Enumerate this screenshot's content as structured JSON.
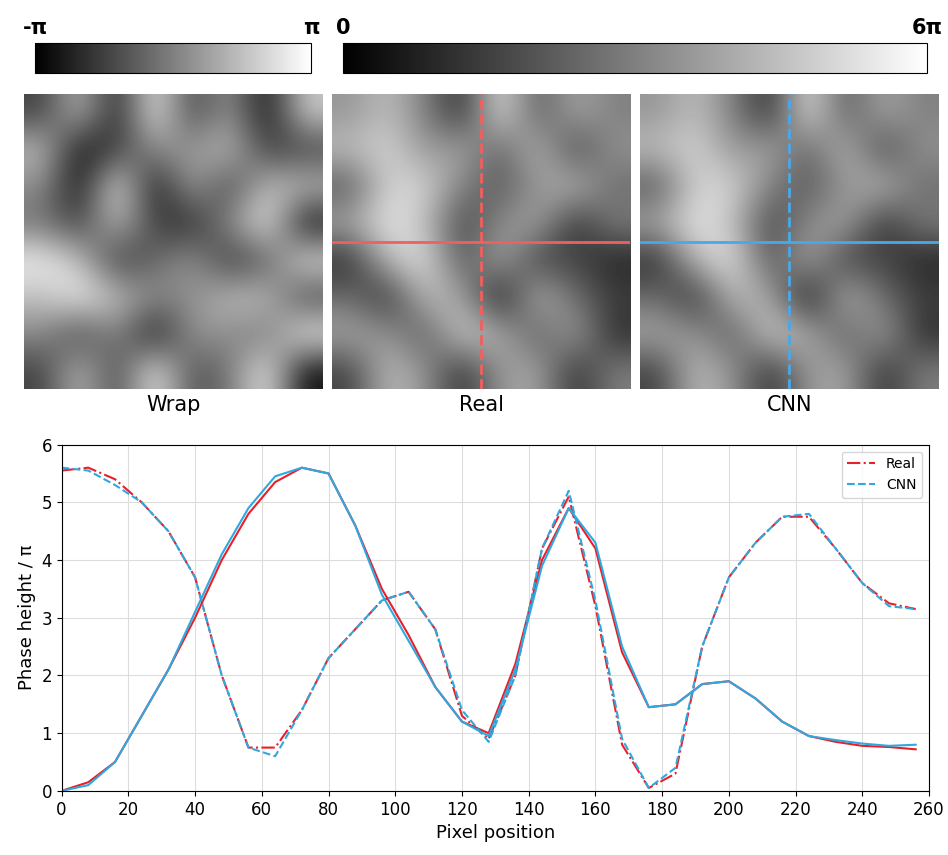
{
  "chart_data": [
    {
      "type": "heatmap",
      "title": "Wrap",
      "pixels": 256,
      "color_range": [
        -1,
        1
      ],
      "colorbar_ticks": [
        {
          "value": -1,
          "label": "-π"
        },
        {
          "value": 1,
          "label": "π"
        }
      ],
      "tick_labels": false,
      "cells": [
        [
          -0.5,
          0.5,
          -0.8,
          0.9,
          -0.5,
          0.2,
          -0.9,
          0.6
        ],
        [
          0.5,
          -0.9,
          -0.5,
          0.1,
          0.2,
          0.5,
          -0.5,
          -0.5
        ],
        [
          0.1,
          -0.9,
          0.9,
          -0.9,
          0.3,
          -0.5,
          0.5,
          0.5
        ],
        [
          -0.1,
          -0.5,
          0.5,
          -0.5,
          -0.7,
          0.1,
          0.9,
          -0.9
        ],
        [
          0.9,
          0.5,
          -0.6,
          -0.2,
          0.2,
          -0.6,
          -0.3,
          0.8
        ],
        [
          0.5,
          0.9,
          0.5,
          0.1,
          0.1,
          0.5,
          0.5,
          -0.5
        ],
        [
          0.1,
          -0.5,
          0.1,
          -0.9,
          0.2,
          0.1,
          -0.1,
          0.9
        ],
        [
          -0.5,
          0.5,
          -0.5,
          0.9,
          -0.4,
          -0.1,
          0.9,
          -0.9
        ]
      ]
    },
    {
      "type": "heatmap",
      "title": "Real",
      "pixels": 256,
      "color_range": [
        0,
        6
      ],
      "colorbar_ticks": [
        {
          "value": 0,
          "label": "0"
        },
        {
          "value": 6,
          "label": "6π"
        }
      ],
      "tick_labels": false,
      "profile_row": 128,
      "profile_column": 128,
      "color": "#f06060",
      "cells": [
        [
          3.5,
          4.5,
          3.0,
          1.0,
          5.5,
          2.0,
          4.0,
          3.0
        ],
        [
          4.5,
          5.0,
          3.5,
          4.0,
          2.2,
          4.5,
          1.5,
          3.5
        ],
        [
          2.0,
          5.0,
          5.0,
          3.0,
          2.0,
          3.5,
          4.5,
          2.5
        ],
        [
          4.0,
          5.5,
          4.5,
          1.5,
          3.3,
          4.0,
          1.0,
          3.0
        ],
        [
          1.0,
          4.5,
          5.4,
          1.8,
          4.2,
          1.4,
          1.7,
          0.8
        ],
        [
          2.5,
          1.0,
          4.5,
          4.0,
          0.1,
          4.5,
          2.5,
          1.5
        ],
        [
          4.0,
          3.5,
          2.0,
          5.0,
          4.2,
          2.0,
          4.0,
          1.0
        ],
        [
          1.5,
          4.5,
          3.5,
          1.0,
          3.6,
          4.0,
          1.0,
          3.0
        ]
      ]
    },
    {
      "type": "heatmap",
      "title": "CNN",
      "pixels": 256,
      "color_range": [
        0,
        6
      ],
      "tick_labels": false,
      "profile_row": 128,
      "profile_column": 128,
      "color": "#4aa8e8",
      "cells": [
        [
          3.5,
          4.5,
          3.0,
          1.0,
          5.5,
          2.0,
          4.0,
          3.0
        ],
        [
          4.5,
          5.0,
          3.5,
          4.0,
          2.2,
          4.5,
          1.5,
          3.5
        ],
        [
          2.0,
          5.0,
          5.0,
          3.0,
          2.0,
          3.5,
          4.5,
          2.5
        ],
        [
          4.0,
          5.5,
          4.5,
          1.5,
          3.3,
          4.0,
          1.0,
          3.0
        ],
        [
          1.0,
          4.5,
          5.4,
          1.8,
          4.2,
          1.4,
          1.7,
          0.8
        ],
        [
          2.5,
          1.0,
          4.5,
          4.0,
          0.1,
          4.5,
          2.5,
          1.5
        ],
        [
          4.0,
          3.5,
          2.0,
          5.0,
          4.2,
          2.0,
          4.0,
          1.0
        ],
        [
          1.5,
          4.5,
          3.5,
          1.0,
          3.6,
          4.0,
          1.0,
          3.0
        ]
      ]
    },
    {
      "type": "line",
      "x_label": "Pixel position",
      "y_label": "Phase height / π",
      "x": [
        0,
        8,
        16,
        24,
        32,
        40,
        48,
        56,
        64,
        72,
        80,
        88,
        96,
        104,
        112,
        120,
        128,
        136,
        144,
        152,
        160,
        168,
        176,
        184,
        192,
        200,
        208,
        216,
        224,
        232,
        240,
        248,
        256
      ],
      "xlim": [
        0,
        260
      ],
      "xticks": [
        0,
        20,
        40,
        60,
        80,
        100,
        120,
        140,
        160,
        180,
        200,
        220,
        240,
        260
      ],
      "ylim": [
        0,
        6
      ],
      "yticks": [
        0,
        1,
        2,
        3,
        4,
        5,
        6
      ],
      "grid": true,
      "legend": "upper right",
      "series": [
        {
          "name": "Real",
          "color": "#e8202a",
          "line_style": "solid",
          "values": [
            0,
            0.15,
            0.5,
            1.3,
            2.1,
            3.0,
            4.0,
            4.8,
            5.35,
            5.6,
            5.5,
            4.6,
            3.5,
            2.7,
            1.8,
            1.2,
            1.0,
            2.2,
            4.0,
            4.9,
            4.2,
            2.4,
            1.45,
            1.5,
            1.85,
            1.9,
            1.6,
            1.2,
            0.95,
            0.85,
            0.78,
            0.76,
            0.72
          ]
        },
        {
          "name": "Real",
          "color": "#e8202a",
          "line_style": "dashdot",
          "values": [
            5.55,
            5.6,
            5.4,
            5.0,
            4.5,
            3.7,
            2.0,
            0.75,
            0.75,
            1.4,
            2.3,
            2.8,
            3.3,
            3.45,
            2.8,
            1.3,
            0.9,
            2.0,
            4.2,
            5.1,
            3.2,
            0.8,
            0.05,
            0.3,
            2.5,
            3.7,
            4.3,
            4.75,
            4.75,
            4.2,
            3.6,
            3.25,
            3.15
          ]
        },
        {
          "name": "CNN",
          "color": "#2fa8e0",
          "line_style": "solid",
          "values": [
            0,
            0.1,
            0.5,
            1.3,
            2.1,
            3.1,
            4.1,
            4.9,
            5.45,
            5.6,
            5.5,
            4.6,
            3.4,
            2.6,
            1.8,
            1.2,
            0.95,
            2.1,
            3.9,
            4.9,
            4.3,
            2.5,
            1.45,
            1.5,
            1.85,
            1.9,
            1.6,
            1.2,
            0.95,
            0.88,
            0.82,
            0.78,
            0.8
          ]
        },
        {
          "name": "CNN",
          "color": "#2fa8e0",
          "line_style": "dashed",
          "values": [
            5.6,
            5.55,
            5.3,
            5.0,
            4.5,
            3.7,
            2.0,
            0.75,
            0.6,
            1.4,
            2.3,
            2.8,
            3.3,
            3.45,
            2.8,
            1.4,
            0.85,
            2.0,
            4.2,
            5.2,
            3.3,
            0.9,
            0.05,
            0.4,
            2.5,
            3.7,
            4.3,
            4.75,
            4.8,
            4.2,
            3.6,
            3.2,
            3.15
          ]
        }
      ]
    }
  ]
}
